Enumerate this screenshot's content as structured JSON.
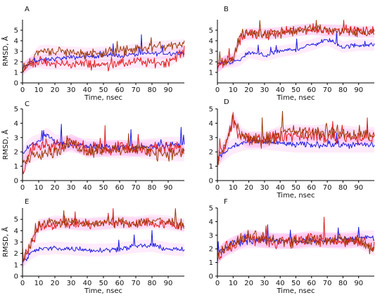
{
  "chart_data": [
    {
      "panel": "A",
      "type": "line",
      "xlabel": "Time, nsec",
      "ylabel": "RMSD, Å",
      "xlim": [
        0,
        100
      ],
      "ylim": [
        0,
        6
      ],
      "xticks": [
        0,
        10,
        20,
        30,
        40,
        50,
        60,
        70,
        80,
        90
      ],
      "yticks": [
        0,
        1,
        2,
        3,
        4,
        5
      ],
      "x": [
        0,
        5,
        10,
        15,
        20,
        30,
        40,
        50,
        60,
        70,
        80,
        90,
        100
      ],
      "series": [
        {
          "color": "#1f1fe0",
          "values": [
            1.4,
            1.9,
            2.1,
            2.2,
            2.3,
            2.4,
            2.5,
            2.6,
            2.6,
            2.7,
            2.8,
            2.8,
            2.9
          ]
        },
        {
          "color": "#e11e1e",
          "values": [
            1.2,
            1.9,
            2.0,
            1.8,
            1.8,
            1.8,
            1.8,
            1.7,
            1.8,
            2.0,
            1.9,
            2.0,
            3.0
          ]
        },
        {
          "color": "#9b3d0a",
          "values": [
            1.3,
            2.0,
            3.0,
            3.1,
            3.0,
            2.9,
            2.8,
            2.9,
            3.0,
            3.2,
            3.4,
            3.5,
            3.6
          ]
        }
      ]
    },
    {
      "panel": "B",
      "type": "line",
      "xlabel": "Time, nsec",
      "ylabel": "",
      "xlim": [
        0,
        100
      ],
      "ylim": [
        0,
        6
      ],
      "xticks": [
        0,
        10,
        20,
        30,
        40,
        50,
        60,
        70,
        80,
        90
      ],
      "yticks": [
        1,
        2,
        3,
        4,
        5
      ],
      "x": [
        0,
        5,
        10,
        15,
        20,
        30,
        40,
        50,
        60,
        70,
        80,
        90,
        100
      ],
      "series": [
        {
          "color": "#1f1fe0",
          "values": [
            1.6,
            2.0,
            2.0,
            2.2,
            2.9,
            2.6,
            3.0,
            3.2,
            3.6,
            4.1,
            3.4,
            3.6,
            3.6
          ]
        },
        {
          "color": "#e11e1e",
          "values": [
            1.5,
            2.1,
            2.2,
            4.4,
            4.6,
            4.6,
            4.7,
            5.0,
            5.1,
            5.0,
            5.0,
            4.9,
            4.9
          ]
        },
        {
          "color": "#9b3d0a",
          "values": [
            1.6,
            2.1,
            2.3,
            4.6,
            4.7,
            4.7,
            4.8,
            4.9,
            5.1,
            5.0,
            4.9,
            4.8,
            4.8
          ]
        }
      ]
    },
    {
      "panel": "C",
      "type": "line",
      "xlabel": "",
      "ylabel": "RMSD, Å",
      "xlim": [
        0,
        100
      ],
      "ylim": [
        0,
        5
      ],
      "xticks": [
        0,
        10,
        20,
        30,
        40,
        50,
        60,
        70,
        80,
        90
      ],
      "yticks": [
        0,
        1,
        2,
        3,
        4,
        5
      ],
      "x": [
        0,
        5,
        10,
        15,
        20,
        30,
        40,
        50,
        60,
        70,
        80,
        90,
        100
      ],
      "series": [
        {
          "color": "#1f1fe0",
          "values": [
            1.8,
            2.5,
            2.7,
            3.2,
            2.7,
            2.5,
            2.4,
            2.3,
            2.3,
            2.3,
            2.4,
            2.5,
            2.5
          ]
        },
        {
          "color": "#e11e1e",
          "values": [
            0.8,
            2.0,
            2.4,
            2.4,
            2.3,
            2.7,
            2.2,
            2.2,
            2.3,
            2.2,
            2.3,
            2.2,
            2.2
          ]
        },
        {
          "color": "#9b3d0a",
          "values": [
            1.2,
            1.8,
            2.0,
            2.0,
            2.0,
            2.7,
            2.1,
            2.2,
            2.1,
            2.2,
            2.0,
            1.9,
            1.9
          ]
        }
      ]
    },
    {
      "panel": "D",
      "type": "line",
      "xlabel": "Time, nsec",
      "ylabel": "",
      "xlim": [
        0,
        100
      ],
      "ylim": [
        0,
        5
      ],
      "xticks": [
        0,
        10,
        20,
        30,
        40,
        50,
        60,
        70,
        80,
        90
      ],
      "yticks": [
        0,
        1,
        2,
        3,
        4,
        5
      ],
      "x": [
        0,
        5,
        10,
        15,
        20,
        30,
        40,
        50,
        60,
        70,
        80,
        90,
        100
      ],
      "series": [
        {
          "color": "#1f1fe0",
          "values": [
            1.5,
            2.0,
            2.4,
            2.6,
            2.7,
            2.7,
            2.6,
            2.5,
            2.5,
            2.5,
            2.5,
            2.5,
            2.5
          ]
        },
        {
          "color": "#e11e1e",
          "values": [
            1.5,
            2.3,
            4.2,
            3.0,
            2.8,
            2.9,
            3.1,
            3.2,
            3.2,
            3.0,
            3.1,
            3.0,
            3.0
          ]
        },
        {
          "color": "#9b3d0a",
          "values": [
            1.5,
            2.4,
            4.4,
            3.2,
            2.9,
            2.8,
            3.3,
            3.4,
            3.3,
            3.4,
            3.3,
            3.2,
            3.2
          ]
        }
      ]
    },
    {
      "panel": "E",
      "type": "line",
      "xlabel": "Time, nsec",
      "ylabel": "RMSD, Å",
      "xlim": [
        0,
        100
      ],
      "ylim": [
        0,
        6
      ],
      "xticks": [
        0,
        10,
        20,
        30,
        40,
        50,
        60,
        70,
        80,
        90
      ],
      "yticks": [
        0,
        1,
        2,
        3,
        4,
        5
      ],
      "x": [
        0,
        5,
        10,
        15,
        20,
        30,
        40,
        50,
        60,
        70,
        80,
        90,
        100
      ],
      "series": [
        {
          "color": "#1f1fe0",
          "values": [
            1.2,
            2.0,
            2.4,
            2.4,
            2.5,
            2.4,
            2.3,
            2.3,
            2.4,
            2.6,
            2.7,
            2.4,
            2.3
          ]
        },
        {
          "color": "#e11e1e",
          "values": [
            1.3,
            2.6,
            4.4,
            4.5,
            4.6,
            4.6,
            4.5,
            4.6,
            4.7,
            4.6,
            4.7,
            4.6,
            4.4
          ]
        },
        {
          "color": "#9b3d0a",
          "values": [
            1.2,
            2.8,
            4.5,
            4.6,
            4.8,
            4.7,
            4.6,
            4.7,
            4.8,
            4.7,
            4.9,
            4.8,
            4.5
          ]
        }
      ]
    },
    {
      "panel": "F",
      "type": "line",
      "xlabel": "Time, nsec",
      "ylabel": "",
      "xlim": [
        0,
        100
      ],
      "ylim": [
        0,
        5
      ],
      "xticks": [
        0,
        10,
        20,
        30,
        40,
        50,
        60,
        70,
        80,
        90
      ],
      "yticks": [
        0,
        1,
        2,
        3,
        4,
        5
      ],
      "x": [
        0,
        5,
        10,
        15,
        20,
        30,
        40,
        50,
        60,
        70,
        80,
        90,
        100
      ],
      "series": [
        {
          "color": "#1f1fe0",
          "values": [
            1.6,
            2.0,
            2.4,
            2.5,
            2.6,
            2.6,
            2.6,
            2.5,
            2.6,
            2.6,
            2.7,
            2.8,
            2.8
          ]
        },
        {
          "color": "#e11e1e",
          "values": [
            1.4,
            2.0,
            2.2,
            2.6,
            2.8,
            2.6,
            2.5,
            2.6,
            2.8,
            2.6,
            2.5,
            2.7,
            2.2
          ]
        },
        {
          "color": "#9b3d0a",
          "values": [
            1.4,
            2.1,
            2.3,
            2.7,
            2.9,
            2.7,
            2.6,
            2.6,
            2.7,
            2.7,
            2.6,
            2.6,
            2.0
          ]
        }
      ]
    }
  ]
}
